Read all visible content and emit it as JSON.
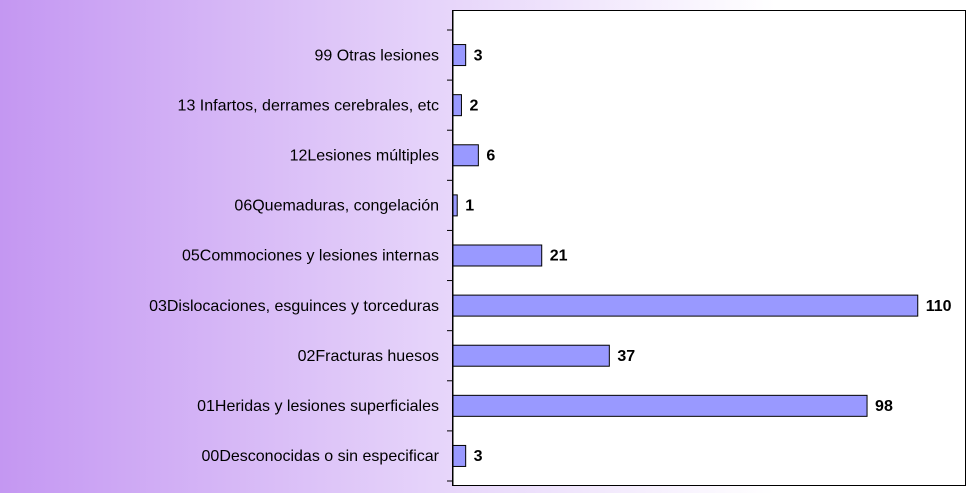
{
  "chart_data": {
    "type": "bar",
    "orientation": "horizontal",
    "categories": [
      "99 Otras lesiones",
      "13 Infartos, derrames cerebrales, etc",
      "12Lesiones múltiples",
      "06Quemaduras, congelación",
      "05Commociones y lesiones internas",
      "03Dislocaciones, esguinces y torceduras",
      "02Fracturas huesos",
      "01Heridas y lesiones superficiales",
      "00Desconocidas o sin especificar"
    ],
    "values": [
      3,
      2,
      6,
      1,
      21,
      110,
      37,
      98,
      3
    ],
    "color": "#9999ff",
    "xlim": [
      0,
      120
    ]
  }
}
